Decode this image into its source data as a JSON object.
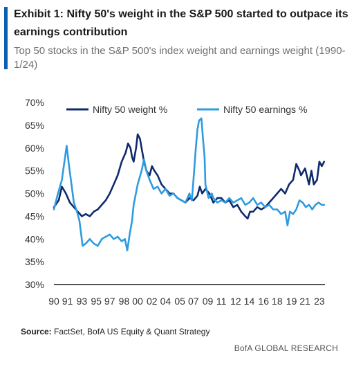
{
  "header": {
    "title": "Exhibit 1: Nifty 50's weight in the S&P 500 started to outpace its earnings contribution",
    "subtitle": "Top 50 stocks in the S&P 500's index weight and earnings weight (1990-1/24)"
  },
  "footer": {
    "source_label": "Source:",
    "source_text": "FactSet, BofA US Equity & Quant Strategy",
    "brand": "BofA GLOBAL RESEARCH"
  },
  "colors": {
    "weight": "#0f2a6b",
    "earnings": "#2e9be0",
    "axis": "#555555",
    "accent": "#0b5fb3"
  },
  "chart_data": {
    "type": "line",
    "ylim": [
      30,
      70
    ],
    "xlim": [
      1990,
      2024
    ],
    "grid": false,
    "legend_position": "top",
    "y_ticks": [
      "30%",
      "35%",
      "40%",
      "45%",
      "50%",
      "55%",
      "60%",
      "65%",
      "70%"
    ],
    "y_tick_values": [
      30,
      35,
      40,
      45,
      50,
      55,
      60,
      65,
      70
    ],
    "x_ticks": [
      "90",
      "91",
      "93",
      "95",
      "97",
      "98",
      "00",
      "02",
      "04",
      "05",
      "07",
      "09",
      "11",
      "12",
      "14",
      "16",
      "18",
      "19",
      "21",
      "23"
    ],
    "x_tick_values": [
      1990,
      1991.7,
      1993.5,
      1995.3,
      1997,
      1998.8,
      2000.5,
      2002.3,
      2004,
      2005.8,
      2007.5,
      2009.3,
      2011,
      2012.8,
      2014.5,
      2016.3,
      2018,
      2019.8,
      2021.5,
      2023.3
    ],
    "series": [
      {
        "name": "Nifty 50 weight %",
        "color_key": "weight",
        "points": [
          [
            1990,
            47
          ],
          [
            1990.6,
            48.5
          ],
          [
            1991,
            51.5
          ],
          [
            1991.5,
            50
          ],
          [
            1992,
            48
          ],
          [
            1992.5,
            47
          ],
          [
            1993,
            46
          ],
          [
            1993.5,
            45
          ],
          [
            1994,
            45.5
          ],
          [
            1994.5,
            45
          ],
          [
            1995,
            46
          ],
          [
            1995.5,
            46.5
          ],
          [
            1996,
            47.5
          ],
          [
            1996.5,
            48.5
          ],
          [
            1997,
            50
          ],
          [
            1997.5,
            52
          ],
          [
            1998,
            54
          ],
          [
            1998.5,
            57
          ],
          [
            1999,
            59
          ],
          [
            1999.3,
            61
          ],
          [
            1999.6,
            60
          ],
          [
            1999.8,
            58
          ],
          [
            2000,
            57
          ],
          [
            2000.3,
            60
          ],
          [
            2000.5,
            63
          ],
          [
            2000.8,
            62
          ],
          [
            2001,
            60
          ],
          [
            2001.3,
            57
          ],
          [
            2001.6,
            55
          ],
          [
            2002,
            54
          ],
          [
            2002.3,
            56
          ],
          [
            2002.6,
            55
          ],
          [
            2003,
            54
          ],
          [
            2003.5,
            52
          ],
          [
            2004,
            51
          ],
          [
            2004.5,
            50
          ],
          [
            2005,
            50
          ],
          [
            2005.5,
            49
          ],
          [
            2006,
            48.5
          ],
          [
            2006.5,
            48
          ],
          [
            2007,
            49
          ],
          [
            2007.5,
            48.5
          ],
          [
            2008,
            49.5
          ],
          [
            2008.3,
            51.5
          ],
          [
            2008.6,
            50
          ],
          [
            2009,
            51
          ],
          [
            2009.5,
            50
          ],
          [
            2010,
            48
          ],
          [
            2010.5,
            49
          ],
          [
            2011,
            49
          ],
          [
            2011.5,
            48
          ],
          [
            2012,
            48.5
          ],
          [
            2012.5,
            47
          ],
          [
            2013,
            47.5
          ],
          [
            2013.5,
            46
          ],
          [
            2014,
            45
          ],
          [
            2014.3,
            44.5
          ],
          [
            2014.6,
            46
          ],
          [
            2015,
            46
          ],
          [
            2015.5,
            47
          ],
          [
            2016,
            46.5
          ],
          [
            2016.5,
            47
          ],
          [
            2017,
            48
          ],
          [
            2017.5,
            49
          ],
          [
            2018,
            50
          ],
          [
            2018.5,
            51
          ],
          [
            2019,
            50
          ],
          [
            2019.5,
            52
          ],
          [
            2020,
            53
          ],
          [
            2020.4,
            56.5
          ],
          [
            2020.8,
            55
          ],
          [
            2021,
            54
          ],
          [
            2021.5,
            55.5
          ],
          [
            2022,
            52
          ],
          [
            2022.3,
            55
          ],
          [
            2022.6,
            52
          ],
          [
            2023,
            53
          ],
          [
            2023.3,
            57
          ],
          [
            2023.6,
            56
          ],
          [
            2023.9,
            57
          ]
        ]
      },
      {
        "name": "Nifty 50 earnings %",
        "color_key": "earnings",
        "points": [
          [
            1990,
            46.5
          ],
          [
            1990.5,
            50
          ],
          [
            1991,
            53
          ],
          [
            1991.4,
            58
          ],
          [
            1991.6,
            60.5
          ],
          [
            1991.9,
            56
          ],
          [
            1992.2,
            52
          ],
          [
            1992.5,
            48
          ],
          [
            1992.9,
            46
          ],
          [
            1993.2,
            44
          ],
          [
            1993.6,
            38.5
          ],
          [
            1994,
            39
          ],
          [
            1994.5,
            40
          ],
          [
            1995,
            39
          ],
          [
            1995.5,
            38.5
          ],
          [
            1996,
            40
          ],
          [
            1996.5,
            40.5
          ],
          [
            1997,
            41
          ],
          [
            1997.5,
            40
          ],
          [
            1998,
            40.5
          ],
          [
            1998.5,
            39.5
          ],
          [
            1998.9,
            40
          ],
          [
            1999.2,
            37.5
          ],
          [
            1999.5,
            41
          ],
          [
            1999.8,
            44
          ],
          [
            2000,
            47.5
          ],
          [
            2000.5,
            52
          ],
          [
            2001,
            55
          ],
          [
            2001.3,
            57.5
          ],
          [
            2001.6,
            55
          ],
          [
            2002,
            53
          ],
          [
            2002.5,
            51
          ],
          [
            2003,
            51.5
          ],
          [
            2003.5,
            50
          ],
          [
            2004,
            51
          ],
          [
            2004.5,
            49.5
          ],
          [
            2005,
            50
          ],
          [
            2005.5,
            49
          ],
          [
            2006,
            48.5
          ],
          [
            2006.5,
            48
          ],
          [
            2007,
            50
          ],
          [
            2007.3,
            48.5
          ],
          [
            2007.5,
            53
          ],
          [
            2007.8,
            60
          ],
          [
            2008,
            64
          ],
          [
            2008.2,
            66
          ],
          [
            2008.5,
            66.5
          ],
          [
            2008.7,
            62
          ],
          [
            2008.9,
            58
          ],
          [
            2009,
            52
          ],
          [
            2009.4,
            49
          ],
          [
            2009.8,
            50
          ],
          [
            2010,
            49
          ],
          [
            2010.5,
            48
          ],
          [
            2011,
            48.5
          ],
          [
            2011.5,
            48
          ],
          [
            2012,
            49
          ],
          [
            2012.5,
            48
          ],
          [
            2013,
            48.5
          ],
          [
            2013.5,
            49
          ],
          [
            2014,
            47.5
          ],
          [
            2014.5,
            48
          ],
          [
            2015,
            49
          ],
          [
            2015.5,
            47.5
          ],
          [
            2016,
            48
          ],
          [
            2016.5,
            47
          ],
          [
            2017,
            47.5
          ],
          [
            2017.5,
            46.5
          ],
          [
            2018,
            46.5
          ],
          [
            2018.5,
            45.5
          ],
          [
            2019,
            46
          ],
          [
            2019.3,
            43
          ],
          [
            2019.6,
            46
          ],
          [
            2020,
            45.5
          ],
          [
            2020.4,
            46.5
          ],
          [
            2020.8,
            48.5
          ],
          [
            2021.2,
            48
          ],
          [
            2021.6,
            47
          ],
          [
            2022,
            47.5
          ],
          [
            2022.4,
            46.5
          ],
          [
            2022.8,
            47.5
          ],
          [
            2023.2,
            48
          ],
          [
            2023.6,
            47.5
          ],
          [
            2023.9,
            47.5
          ]
        ]
      }
    ]
  }
}
